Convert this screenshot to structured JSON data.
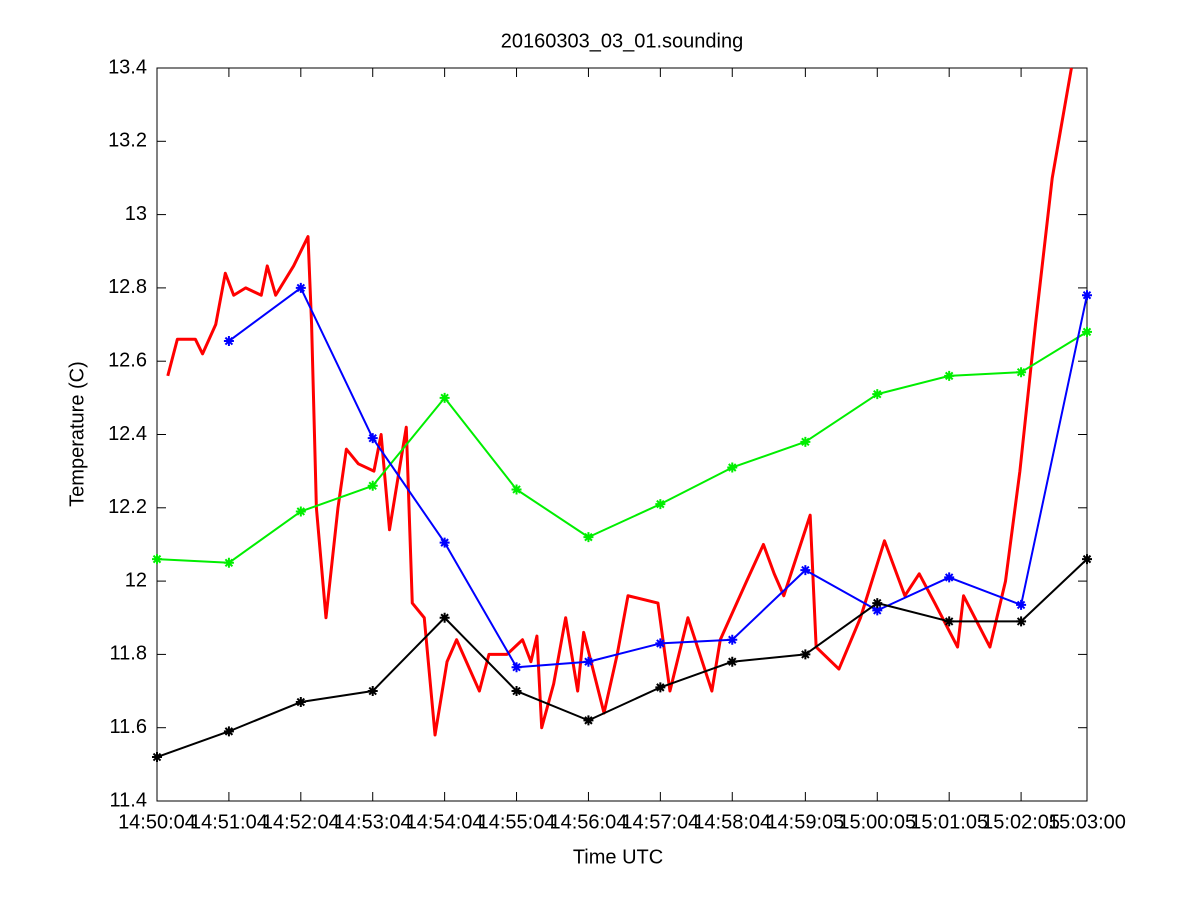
{
  "chart_data": {
    "type": "line",
    "title": "20160303_03_01.sounding",
    "x_label": "Time UTC",
    "y_label": "Temperature (C)",
    "xlim": [
      "14:50:04",
      "15:03:00"
    ],
    "xticks": [
      "14:50:04",
      "14:51:04",
      "14:52:04",
      "14:53:04",
      "14:54:04",
      "14:55:04",
      "14:56:04",
      "14:57:04",
      "14:58:04",
      "14:59:05",
      "15:00:05",
      "15:01:05",
      "15:02:05",
      "15:03:00"
    ],
    "ylim": [
      11.4,
      13.4
    ],
    "yticks": [
      11.4,
      11.6,
      11.8,
      12,
      12.2,
      12.4,
      12.6,
      12.8,
      13,
      13.2,
      13.4
    ],
    "series": [
      {
        "color": "#ff0000",
        "marker": false,
        "x": [
          "14:50:13",
          "14:50:21",
          "14:50:36",
          "14:50:42",
          "14:50:53",
          "14:51:01",
          "14:51:08",
          "14:51:18",
          "14:51:31",
          "14:51:36",
          "14:51:43",
          "14:51:58",
          "14:52:10",
          "14:52:13",
          "14:52:17",
          "14:52:25",
          "14:52:35",
          "14:52:42",
          "14:52:52",
          "14:53:05",
          "14:53:11",
          "14:53:18",
          "14:53:32",
          "14:53:37",
          "14:53:47",
          "14:53:56",
          "14:54:06",
          "14:54:14",
          "14:54:33",
          "14:54:41",
          "14:54:56",
          "14:55:09",
          "14:55:16",
          "14:55:21",
          "14:55:25",
          "14:55:35",
          "14:55:45",
          "14:55:55",
          "14:56:00",
          "14:56:17",
          "14:56:28",
          "14:56:37",
          "14:57:02",
          "14:57:12",
          "14:57:27",
          "14:57:47",
          "14:57:54",
          "14:58:16",
          "14:58:30",
          "14:58:39",
          "14:58:47",
          "14:59:09",
          "14:59:14",
          "14:59:33",
          "14:59:51",
          "15:00:11",
          "15:00:28",
          "15:00:40",
          "15:00:53",
          "15:01:12",
          "15:01:17",
          "15:01:39",
          "15:01:52",
          "15:02:04",
          "15:02:17",
          "15:02:31",
          "15:02:47"
        ],
        "values": [
          12.56,
          12.66,
          12.66,
          12.62,
          12.7,
          12.84,
          12.78,
          12.8,
          12.78,
          12.86,
          12.78,
          12.86,
          12.94,
          12.7,
          12.2,
          11.9,
          12.2,
          12.36,
          12.32,
          12.3,
          12.4,
          12.14,
          12.42,
          11.94,
          11.9,
          11.58,
          11.78,
          11.84,
          11.7,
          11.8,
          11.8,
          11.84,
          11.78,
          11.85,
          11.6,
          11.72,
          11.9,
          11.7,
          11.86,
          11.64,
          11.8,
          11.96,
          11.94,
          11.7,
          11.9,
          11.7,
          11.84,
          12.0,
          12.1,
          12.02,
          11.96,
          12.18,
          11.82,
          11.76,
          11.9,
          12.11,
          11.96,
          12.02,
          11.94,
          11.82,
          11.96,
          11.82,
          12.0,
          12.3,
          12.7,
          13.1,
          13.4
        ]
      },
      {
        "color": "#00ee00",
        "marker": true,
        "x": [
          "14:50:04",
          "14:51:04",
          "14:52:04",
          "14:53:04",
          "14:54:04",
          "14:55:04",
          "14:56:04",
          "14:57:04",
          "14:58:04",
          "14:59:05",
          "15:00:05",
          "15:01:05",
          "15:02:05",
          "15:03:00"
        ],
        "values": [
          12.06,
          12.05,
          12.19,
          12.26,
          12.5,
          12.25,
          12.12,
          12.21,
          12.31,
          12.38,
          12.51,
          12.56,
          12.57,
          12.68
        ]
      },
      {
        "color": "#0000ff",
        "marker": true,
        "x": [
          "14:50:04",
          "14:51:04",
          "14:52:04",
          "14:53:04",
          "14:54:04",
          "14:55:04",
          "14:56:04",
          "14:57:04",
          "14:58:04",
          "14:59:05",
          "15:00:05",
          "15:01:05",
          "15:02:05",
          "15:03:00"
        ],
        "values": [
          null,
          12.655,
          12.8,
          12.39,
          12.105,
          11.765,
          11.78,
          11.83,
          11.84,
          12.03,
          11.92,
          12.01,
          11.935,
          12.78
        ]
      },
      {
        "color": "#000000",
        "marker": true,
        "x": [
          "14:50:04",
          "14:51:04",
          "14:52:04",
          "14:53:04",
          "14:54:04",
          "14:55:04",
          "14:56:04",
          "14:57:04",
          "14:58:04",
          "14:59:05",
          "15:00:05",
          "15:01:05",
          "15:02:05",
          "15:03:00"
        ],
        "values": [
          11.52,
          11.59,
          11.67,
          11.7,
          11.9,
          11.7,
          11.62,
          11.71,
          11.78,
          11.8,
          11.94,
          11.89,
          11.89,
          12.06
        ]
      }
    ]
  }
}
